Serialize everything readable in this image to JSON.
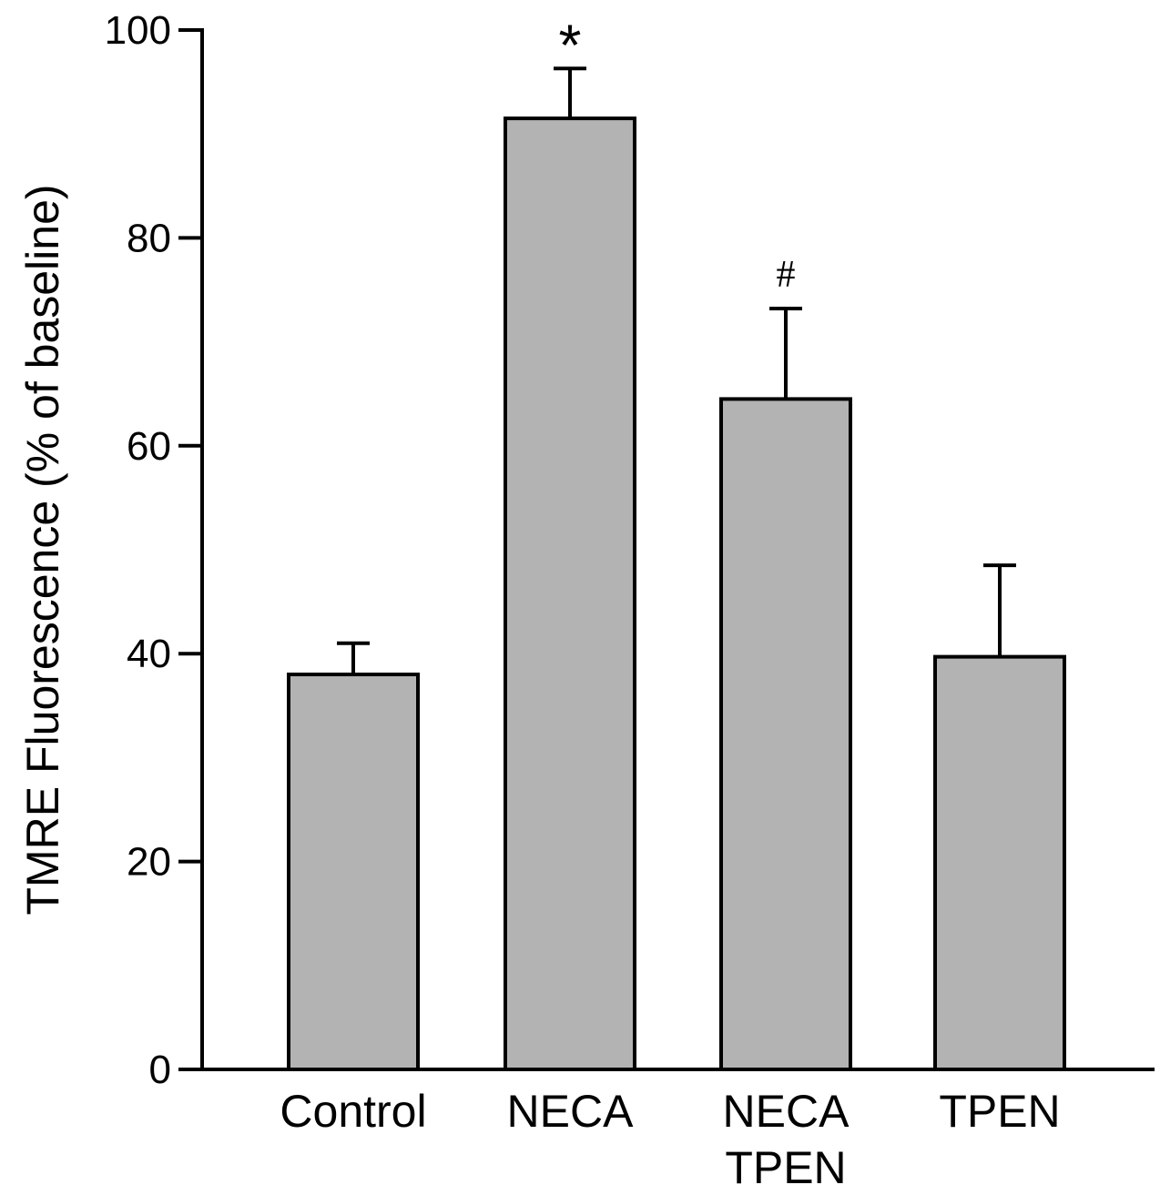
{
  "chart_data": {
    "type": "bar",
    "categories": [
      [
        "Control"
      ],
      [
        "NECA"
      ],
      [
        "NECA",
        "TPEN"
      ],
      [
        "TPEN"
      ]
    ],
    "values": [
      38,
      91.5,
      64.5,
      39.7
    ],
    "errors": [
      3,
      4.8,
      8.7,
      8.8
    ],
    "annotations": [
      "",
      "*",
      "#",
      ""
    ],
    "title": "",
    "xlabel": "",
    "ylabel": "TMRE Fluorescence (% of baseline)",
    "ylim": [
      0,
      100
    ],
    "yticks": [
      0,
      20,
      40,
      60,
      80,
      100
    ],
    "bar_color": "#b3b3b3",
    "edge_color": "#000000",
    "grid": false,
    "legend": "none"
  }
}
